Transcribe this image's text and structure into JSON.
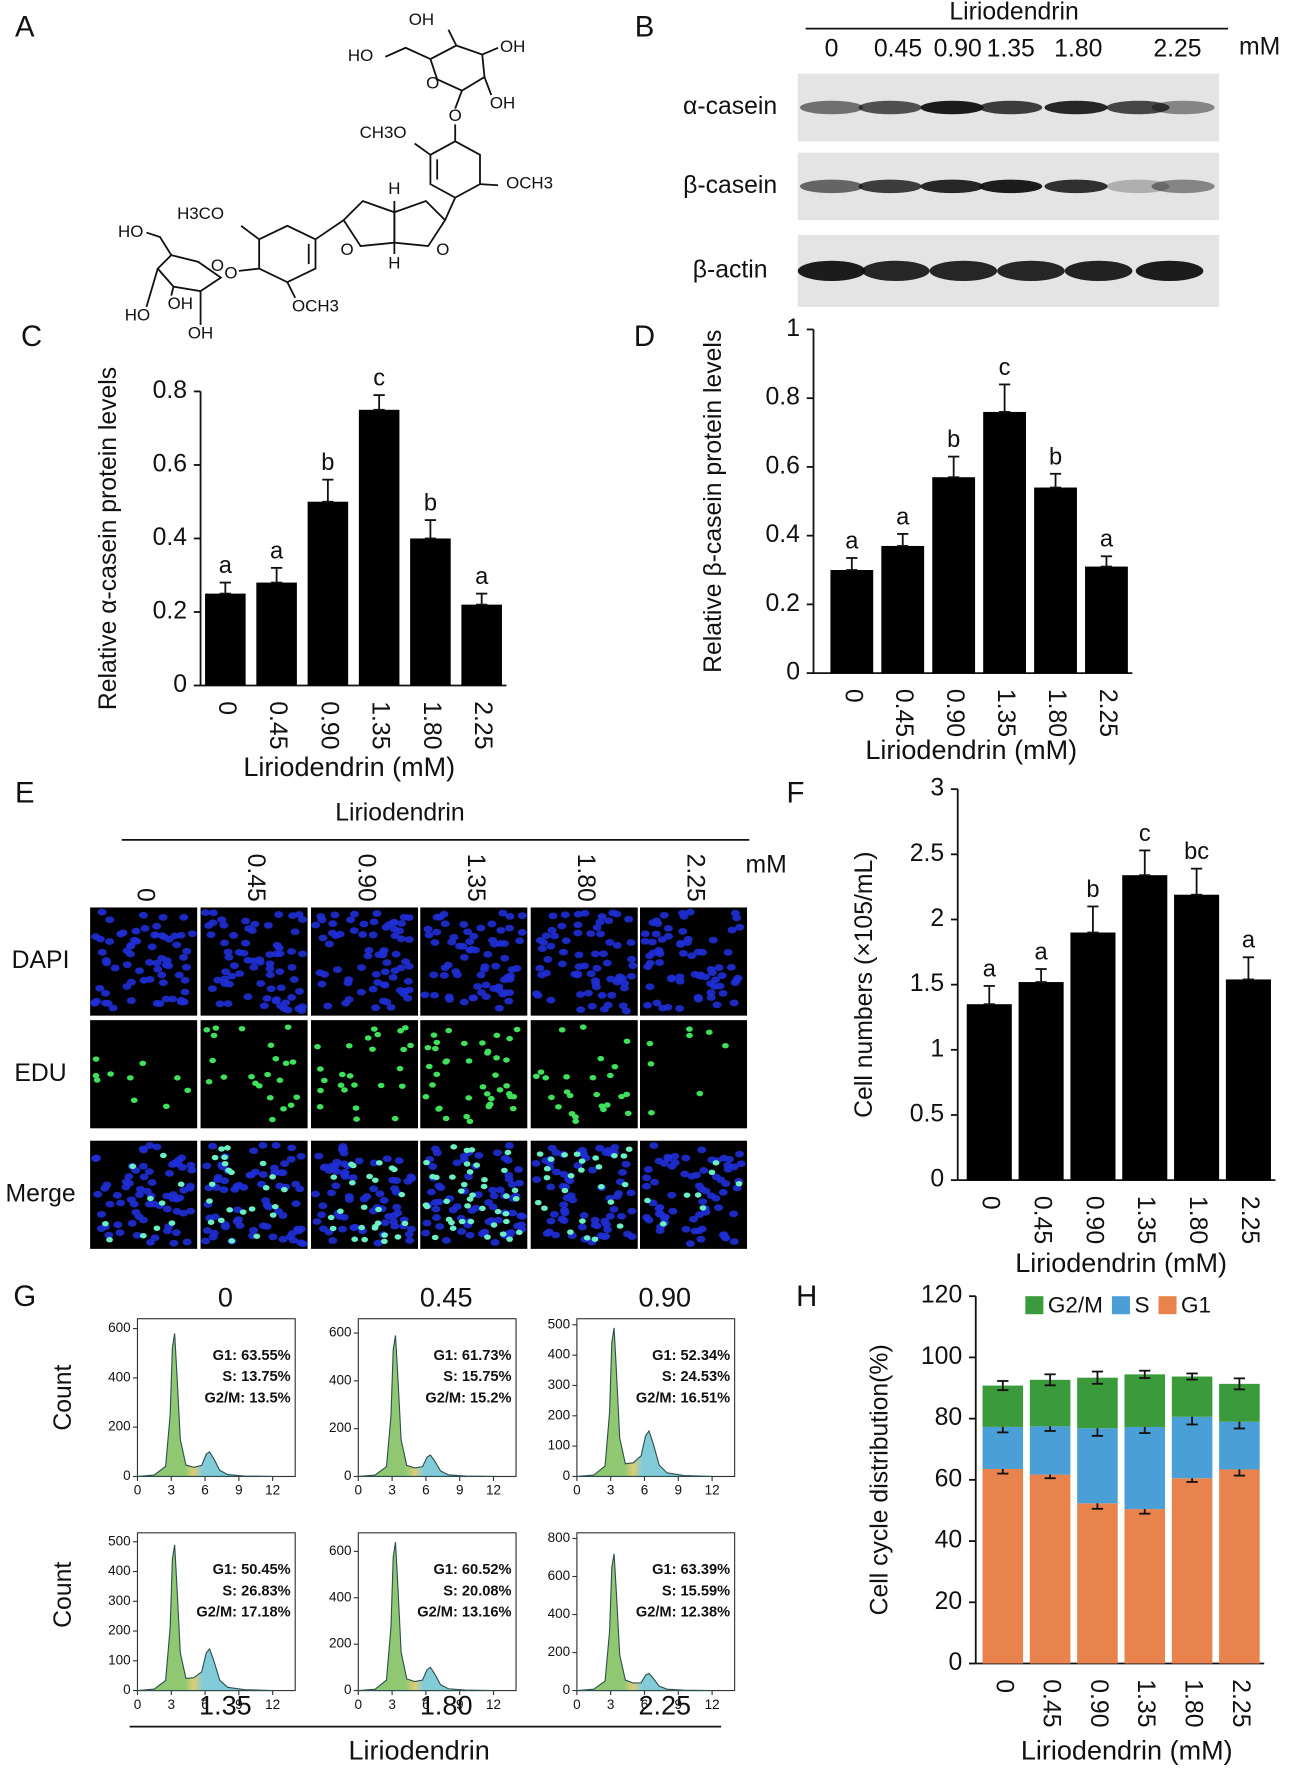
{
  "panel_labels": [
    "A",
    "B",
    "C",
    "D",
    "E",
    "F",
    "G",
    "H"
  ],
  "structure": {
    "labels": [
      "OH",
      "HO",
      "OH",
      "O",
      "OH",
      "CH3O",
      "O",
      "H",
      "OCH3",
      "O",
      "O",
      "H",
      "H3CO",
      "HO",
      "O",
      "O",
      "OCH3",
      "OH",
      "HO",
      "OH"
    ]
  },
  "western_blot": {
    "title": "Liriodendrin",
    "lanes": [
      "0",
      "0.45",
      "0.90",
      "1.35",
      "1.80",
      "2.25"
    ],
    "unit": "mM",
    "rows": [
      "α-casein",
      "β-casein",
      "β-actin"
    ]
  },
  "edu_assay": {
    "title": "Liriodendrin",
    "lanes": [
      "0",
      "0.45",
      "0.90",
      "1.35",
      "1.80",
      "2.25"
    ],
    "unit": "mM",
    "rows": [
      "DAPI",
      "EDU",
      "Merge"
    ]
  },
  "flow_cytometry": {
    "ylabel": "Count",
    "xlabel": "Liriodendrin"
  },
  "chart_data": [
    {
      "type": "bar",
      "categories": [
        "0",
        "0.45",
        "0.90",
        "1.35",
        "1.80",
        "2.25"
      ],
      "values": [
        0.25,
        0.28,
        0.5,
        0.75,
        0.4,
        0.22
      ],
      "errors": [
        0.03,
        0.04,
        0.06,
        0.04,
        0.05,
        0.03
      ],
      "annotations": [
        "a",
        "a",
        "b",
        "c",
        "b",
        "a"
      ],
      "color": "#000000",
      "ylabel": "Relative α-casein protein levels",
      "xlabel": "Liriodendrin (mM)",
      "ylim": [
        0,
        0.8
      ],
      "yticks": [
        0,
        0.2,
        0.4,
        0.6,
        0.8
      ]
    },
    {
      "type": "bar",
      "categories": [
        "0",
        "0.45",
        "0.90",
        "1.35",
        "1.80",
        "2.25"
      ],
      "values": [
        0.3,
        0.37,
        0.57,
        0.76,
        0.54,
        0.31
      ],
      "errors": [
        0.035,
        0.035,
        0.06,
        0.08,
        0.04,
        0.03
      ],
      "annotations": [
        "a",
        "a",
        "b",
        "c",
        "b",
        "a"
      ],
      "color": "#000000",
      "ylabel": "Relative β-casein  protein levels",
      "xlabel": "Liriodendrin (mM)",
      "ylim": [
        0,
        1
      ],
      "yticks": [
        0,
        0.2,
        0.4,
        0.6,
        0.8,
        1
      ]
    },
    {
      "type": "bar",
      "categories": [
        "0",
        "0.45",
        "0.90",
        "1.35",
        "1.80",
        "2.25"
      ],
      "values": [
        1.35,
        1.52,
        1.9,
        2.34,
        2.19,
        1.54
      ],
      "errors": [
        0.14,
        0.1,
        0.2,
        0.19,
        0.2,
        0.17
      ],
      "annotations": [
        "a",
        "a",
        "b",
        "c",
        "bc",
        "a"
      ],
      "color": "#000000",
      "ylabel": "Cell numbers (×105/mL)",
      "xlabel": "Liriodendrin (mM)",
      "ylim": [
        0,
        3
      ],
      "yticks": [
        0,
        0.5,
        1,
        1.5,
        2,
        2.5,
        3
      ]
    },
    {
      "type": "stacked",
      "categories": [
        "0",
        "0.45",
        "0.90",
        "1.35",
        "1.80",
        "2.25"
      ],
      "series": [
        {
          "name": "G1",
          "color": "#e8834e",
          "values": [
            63.55,
            61.73,
            52.34,
            50.45,
            60.52,
            63.39
          ],
          "errors": [
            1.5,
            1.2,
            1.8,
            1.5,
            1.2,
            2.0
          ]
        },
        {
          "name": "S",
          "color": "#4aa0d6",
          "values": [
            13.75,
            15.75,
            24.53,
            26.83,
            20.08,
            15.59
          ],
          "errors": [
            1.8,
            1.5,
            2.5,
            2.0,
            2.5,
            2.2
          ]
        },
        {
          "name": "G2/M",
          "color": "#3a9a3c",
          "values": [
            13.5,
            15.2,
            16.51,
            17.18,
            13.16,
            12.38
          ],
          "errors": [
            1.5,
            1.8,
            2.0,
            1.2,
            1.0,
            1.8
          ]
        }
      ],
      "legend": "top",
      "ylabel": "Cell cycle distribution(%)",
      "xlabel": "Liriodendrin (mM)",
      "ylim": [
        0,
        120
      ],
      "yticks": [
        0,
        20,
        40,
        60,
        80,
        100,
        120
      ]
    },
    {
      "type": "area",
      "title": "0",
      "x": [
        0,
        1.5,
        2.5,
        2.9,
        3.1,
        3.3,
        3.5,
        3.8,
        4.3,
        5,
        5.7,
        6.1,
        6.4,
        6.8,
        7.3,
        8,
        9.5,
        12
      ],
      "values": [
        0,
        6,
        41,
        249,
        522,
        580,
        418,
        151,
        46,
        37,
        45,
        90,
        100,
        70,
        25,
        8,
        2,
        0
      ],
      "annotations": [
        "G1: 63.55%",
        "S: 13.75%",
        "G2/M: 13.5%"
      ],
      "annotation_colors": [
        "#3a9a3c",
        "#3a9ad4",
        "#f0a830"
      ],
      "colors": [
        "#7cbf5a",
        "#d9c45e",
        "#6cc3d3"
      ],
      "xlim": [
        0,
        14
      ],
      "xticks": [
        0,
        3,
        6,
        9,
        12
      ],
      "ylim": [
        0,
        640
      ],
      "yticks": [
        0,
        200,
        400,
        600
      ]
    },
    {
      "type": "area",
      "title": "0.45",
      "x": [
        0,
        1.5,
        2.5,
        2.9,
        3.1,
        3.3,
        3.5,
        3.8,
        4.3,
        5,
        5.7,
        6.1,
        6.4,
        6.8,
        7.3,
        8,
        9.5,
        12
      ],
      "values": [
        0,
        6,
        41,
        254,
        531,
        590,
        425,
        153,
        46,
        36,
        41,
        81,
        90,
        63,
        23,
        7,
        2,
        0
      ],
      "annotations": [
        "G1: 61.73%",
        "S: 15.75%",
        "G2/M: 15.2%"
      ],
      "annotation_colors": [
        "#3a9a3c",
        "#3a9ad4",
        "#f0a830"
      ],
      "colors": [
        "#7cbf5a",
        "#d9c45e",
        "#6cc3d3"
      ],
      "xlim": [
        0,
        14
      ],
      "xticks": [
        0,
        3,
        6,
        9,
        12
      ],
      "ylim": [
        0,
        660
      ],
      "yticks": [
        0,
        200,
        400,
        600
      ]
    },
    {
      "type": "area",
      "title": "0.90",
      "x": [
        0,
        1.5,
        2.5,
        2.9,
        3.1,
        3.3,
        3.5,
        3.8,
        4.3,
        5,
        5.7,
        6.1,
        6.4,
        6.8,
        7.3,
        8,
        9.5,
        12
      ],
      "values": [
        0,
        5,
        34,
        211,
        441,
        490,
        353,
        127,
        42,
        45,
        68,
        135,
        150,
        105,
        38,
        12,
        3,
        0
      ],
      "annotations": [
        "G1: 52.34%",
        "S: 24.53%",
        "G2/M: 16.51%"
      ],
      "annotation_colors": [
        "#3a9a3c",
        "#3a9ad4",
        "#f0a830"
      ],
      "colors": [
        "#7cbf5a",
        "#d9c45e",
        "#6cc3d3"
      ],
      "xlim": [
        0,
        14
      ],
      "xticks": [
        0,
        3,
        6,
        9,
        12
      ],
      "ylim": [
        0,
        520
      ],
      "yticks": [
        0,
        100,
        200,
        300,
        400,
        500
      ]
    },
    {
      "type": "area",
      "title": "1.35",
      "x": [
        0,
        1.5,
        2.5,
        2.9,
        3.1,
        3.3,
        3.5,
        3.8,
        4.3,
        5,
        5.7,
        6.1,
        6.4,
        6.8,
        7.3,
        8,
        9.5,
        12
      ],
      "values": [
        0,
        5,
        34,
        211,
        441,
        490,
        353,
        127,
        41,
        43,
        63,
        126,
        140,
        98,
        35,
        11,
        3,
        0
      ],
      "annotations": [
        "G1: 50.45%",
        "S: 26.83%",
        "G2/M: 17.18%"
      ],
      "annotation_colors": [
        "#3a9a3c",
        "#3a9ad4",
        "#f0a830"
      ],
      "colors": [
        "#7cbf5a",
        "#d9c45e",
        "#6cc3d3"
      ],
      "xlim": [
        0,
        14
      ],
      "xticks": [
        0,
        3,
        6,
        9,
        12
      ],
      "ylim": [
        0,
        530
      ],
      "yticks": [
        0,
        100,
        200,
        300,
        400,
        500
      ]
    },
    {
      "type": "area",
      "title": "1.80",
      "x": [
        0,
        1.5,
        2.5,
        2.9,
        3.1,
        3.3,
        3.5,
        3.8,
        4.3,
        5,
        5.7,
        6.1,
        6.4,
        6.8,
        7.3,
        8,
        9.5,
        12
      ],
      "values": [
        0,
        6,
        45,
        275,
        576,
        640,
        461,
        166,
        50,
        39,
        45,
        90,
        100,
        70,
        25,
        8,
        2,
        0
      ],
      "annotations": [
        "G1: 60.52%",
        "S: 20.08%",
        "G2/M: 13.16%"
      ],
      "annotation_colors": [
        "#3a9a3c",
        "#3a9ad4",
        "#f0a830"
      ],
      "colors": [
        "#7cbf5a",
        "#d9c45e",
        "#6cc3d3"
      ],
      "xlim": [
        0,
        14
      ],
      "xticks": [
        0,
        3,
        6,
        9,
        12
      ],
      "ylim": [
        0,
        680
      ],
      "yticks": [
        0,
        200,
        400,
        600
      ]
    },
    {
      "type": "area",
      "title": "2.25",
      "x": [
        0,
        1.5,
        2.5,
        2.9,
        3.1,
        3.3,
        3.5,
        3.8,
        4.3,
        5,
        5.7,
        6.1,
        6.4,
        6.8,
        7.3,
        8,
        9.5,
        12
      ],
      "values": [
        0,
        7,
        50,
        310,
        648,
        720,
        518,
        187,
        55,
        40,
        41,
        81,
        90,
        63,
        23,
        7,
        2,
        0
      ],
      "annotations": [
        "G1: 63.39%",
        "S: 15.59%",
        "G2/M: 12.38%"
      ],
      "annotation_colors": [
        "#3a9a3c",
        "#3a9ad4",
        "#f0a830"
      ],
      "colors": [
        "#7cbf5a",
        "#d9c45e",
        "#6cc3d3"
      ],
      "xlim": [
        0,
        14
      ],
      "xticks": [
        0,
        3,
        6,
        9,
        12
      ],
      "ylim": [
        0,
        830
      ],
      "yticks": [
        0,
        200,
        400,
        600,
        800
      ]
    }
  ]
}
